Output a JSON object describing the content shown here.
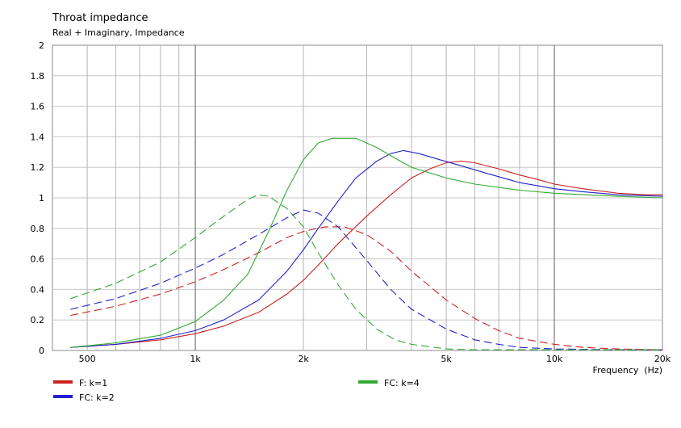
{
  "chart_data": {
    "type": "line",
    "title": "Throat impedance",
    "subtitle": "Real + Imaginary, Impedance",
    "xlabel": "Frequency  (Hz)",
    "ylabel": "",
    "x_scale": "log",
    "xlim": [
      400,
      20000
    ],
    "ylim": [
      0,
      2
    ],
    "x_ticks": [
      {
        "value": 500,
        "label": "500"
      },
      {
        "value": 1000,
        "label": "1k"
      },
      {
        "value": 2000,
        "label": "2k"
      },
      {
        "value": 5000,
        "label": "5k"
      },
      {
        "value": 10000,
        "label": "10k"
      },
      {
        "value": 20000,
        "label": "20k"
      }
    ],
    "y_ticks": [
      {
        "value": 0,
        "label": "0"
      },
      {
        "value": 0.2,
        "label": "0.2"
      },
      {
        "value": 0.4,
        "label": "0.4"
      },
      {
        "value": 0.6,
        "label": "0.6"
      },
      {
        "value": 0.8,
        "label": "0.8"
      },
      {
        "value": 1,
        "label": "1"
      },
      {
        "value": 1.2,
        "label": "1.2"
      },
      {
        "value": 1.4,
        "label": "1.4"
      },
      {
        "value": 1.6,
        "label": "1.6"
      },
      {
        "value": 1.8,
        "label": "1.8"
      },
      {
        "value": 2,
        "label": "2"
      }
    ],
    "grid": true,
    "legend_position": "bottom",
    "legend": [
      {
        "name": "F: k=1",
        "color": "#cc2222"
      },
      {
        "name": "FC: k=2",
        "color": "#2222cc"
      },
      {
        "name": "FC: k=4",
        "color": "#33aa33"
      }
    ],
    "series": [
      {
        "name": "F: k=1 real",
        "legend": "F: k=1",
        "part": "real",
        "color": "#cc2222",
        "style": "solid",
        "points": [
          [
            450,
            0.02
          ],
          [
            600,
            0.04
          ],
          [
            800,
            0.07
          ],
          [
            1000,
            0.11
          ],
          [
            1200,
            0.16
          ],
          [
            1500,
            0.25
          ],
          [
            1800,
            0.37
          ],
          [
            2000,
            0.46
          ],
          [
            2200,
            0.56
          ],
          [
            2500,
            0.7
          ],
          [
            3000,
            0.88
          ],
          [
            3500,
            1.02
          ],
          [
            4000,
            1.13
          ],
          [
            4500,
            1.19
          ],
          [
            5000,
            1.23
          ],
          [
            5500,
            1.24
          ],
          [
            6000,
            1.23
          ],
          [
            7000,
            1.19
          ],
          [
            8000,
            1.15
          ],
          [
            9000,
            1.12
          ],
          [
            10000,
            1.09
          ],
          [
            12000,
            1.06
          ],
          [
            15000,
            1.03
          ],
          [
            18000,
            1.02
          ],
          [
            20000,
            1.02
          ]
        ]
      },
      {
        "name": "F: k=1 imaginary",
        "legend": "F: k=1",
        "part": "imaginary",
        "color": "#cc2222",
        "style": "dashed",
        "points": [
          [
            450,
            0.23
          ],
          [
            600,
            0.29
          ],
          [
            800,
            0.37
          ],
          [
            1000,
            0.45
          ],
          [
            1200,
            0.53
          ],
          [
            1500,
            0.64
          ],
          [
            1800,
            0.74
          ],
          [
            2000,
            0.78
          ],
          [
            2300,
            0.81
          ],
          [
            2600,
            0.81
          ],
          [
            3000,
            0.76
          ],
          [
            3500,
            0.65
          ],
          [
            4000,
            0.52
          ],
          [
            5000,
            0.33
          ],
          [
            6000,
            0.21
          ],
          [
            7000,
            0.13
          ],
          [
            8000,
            0.08
          ],
          [
            10000,
            0.04
          ],
          [
            12000,
            0.02
          ],
          [
            15000,
            0.01
          ],
          [
            20000,
            0.005
          ]
        ]
      },
      {
        "name": "FC: k=2 real",
        "legend": "FC: k=2",
        "part": "real",
        "color": "#2222cc",
        "style": "solid",
        "points": [
          [
            450,
            0.02
          ],
          [
            600,
            0.04
          ],
          [
            800,
            0.08
          ],
          [
            1000,
            0.13
          ],
          [
            1200,
            0.2
          ],
          [
            1500,
            0.33
          ],
          [
            1800,
            0.52
          ],
          [
            2000,
            0.66
          ],
          [
            2200,
            0.8
          ],
          [
            2500,
            0.98
          ],
          [
            2800,
            1.13
          ],
          [
            3200,
            1.24
          ],
          [
            3500,
            1.29
          ],
          [
            3800,
            1.31
          ],
          [
            4200,
            1.29
          ],
          [
            4800,
            1.25
          ],
          [
            5500,
            1.21
          ],
          [
            6500,
            1.16
          ],
          [
            8000,
            1.1
          ],
          [
            10000,
            1.06
          ],
          [
            12000,
            1.04
          ],
          [
            15000,
            1.02
          ],
          [
            20000,
            1.01
          ]
        ]
      },
      {
        "name": "FC: k=2 imaginary",
        "legend": "FC: k=2",
        "part": "imaginary",
        "color": "#2222cc",
        "style": "dashed",
        "points": [
          [
            450,
            0.27
          ],
          [
            600,
            0.34
          ],
          [
            800,
            0.44
          ],
          [
            1000,
            0.54
          ],
          [
            1200,
            0.63
          ],
          [
            1500,
            0.76
          ],
          [
            1800,
            0.87
          ],
          [
            2000,
            0.92
          ],
          [
            2200,
            0.9
          ],
          [
            2500,
            0.81
          ],
          [
            3000,
            0.59
          ],
          [
            3500,
            0.4
          ],
          [
            4000,
            0.27
          ],
          [
            5000,
            0.14
          ],
          [
            6000,
            0.07
          ],
          [
            7000,
            0.04
          ],
          [
            8000,
            0.02
          ],
          [
            10000,
            0.01
          ],
          [
            15000,
            0.005
          ],
          [
            20000,
            0.005
          ]
        ]
      },
      {
        "name": "FC: k=4 real",
        "legend": "FC: k=4",
        "part": "real",
        "color": "#33aa33",
        "style": "solid",
        "points": [
          [
            450,
            0.02
          ],
          [
            600,
            0.05
          ],
          [
            800,
            0.1
          ],
          [
            1000,
            0.19
          ],
          [
            1200,
            0.33
          ],
          [
            1400,
            0.5
          ],
          [
            1600,
            0.78
          ],
          [
            1800,
            1.05
          ],
          [
            2000,
            1.25
          ],
          [
            2200,
            1.36
          ],
          [
            2400,
            1.39
          ],
          [
            2800,
            1.39
          ],
          [
            3200,
            1.33
          ],
          [
            3600,
            1.26
          ],
          [
            4000,
            1.2
          ],
          [
            5000,
            1.13
          ],
          [
            6000,
            1.09
          ],
          [
            8000,
            1.05
          ],
          [
            10000,
            1.03
          ],
          [
            15000,
            1.01
          ],
          [
            20000,
            1.0
          ]
        ]
      },
      {
        "name": "FC: k=4 imaginary",
        "legend": "FC: k=4",
        "part": "imaginary",
        "color": "#33aa33",
        "style": "dashed",
        "points": [
          [
            450,
            0.34
          ],
          [
            600,
            0.44
          ],
          [
            800,
            0.58
          ],
          [
            1000,
            0.74
          ],
          [
            1200,
            0.88
          ],
          [
            1400,
            0.99
          ],
          [
            1500,
            1.02
          ],
          [
            1600,
            1.01
          ],
          [
            1800,
            0.93
          ],
          [
            2000,
            0.81
          ],
          [
            2200,
            0.64
          ],
          [
            2500,
            0.43
          ],
          [
            2800,
            0.27
          ],
          [
            3200,
            0.14
          ],
          [
            3600,
            0.07
          ],
          [
            4000,
            0.04
          ],
          [
            5000,
            0.01
          ],
          [
            6000,
            0.005
          ],
          [
            8000,
            0.005
          ],
          [
            20000,
            0.005
          ]
        ]
      }
    ]
  }
}
